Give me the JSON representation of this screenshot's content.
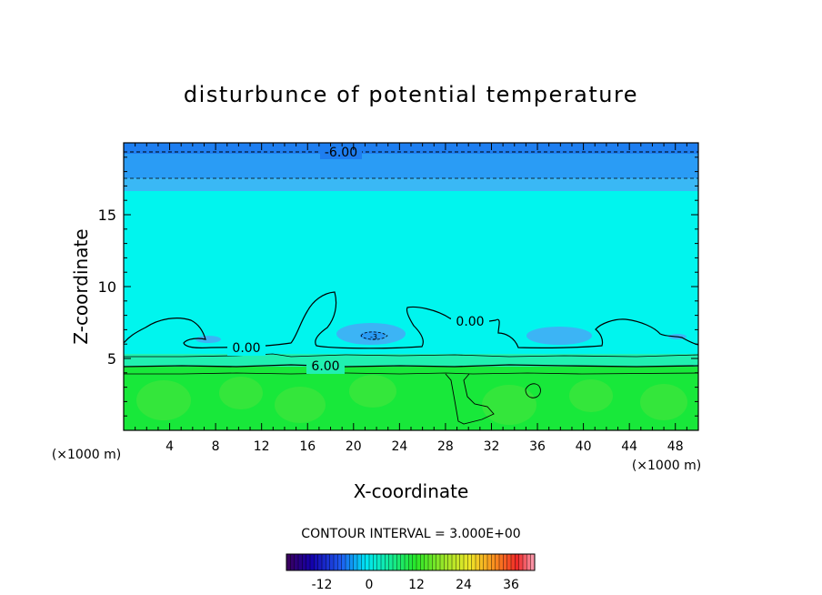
{
  "chart_data": {
    "type": "heatmap",
    "title": "disturbunce of potential temperature",
    "xlabel": "X-coordinate",
    "ylabel": "Z-coordinate",
    "x_unit": "(×1000 m)",
    "xlim": [
      0,
      50
    ],
    "ylim": [
      0,
      20
    ],
    "x_ticks": [
      4,
      8,
      12,
      16,
      20,
      24,
      28,
      32,
      36,
      40,
      44,
      48
    ],
    "y_ticks": [
      5,
      10,
      15
    ],
    "contour_interval_text": "CONTOUR INTERVAL = 3.000E+00",
    "contour_labels": [
      {
        "text": "-6.00",
        "x": 19.3,
        "z": 19.4
      },
      {
        "text": "0.00",
        "x": 30.2,
        "z": 7.7
      },
      {
        "text": "0.00",
        "x": 8.6,
        "z": 5.8
      },
      {
        "text": "6.00",
        "x": 17.3,
        "z": 4.5
      },
      {
        "text": "-3",
        "x": 21.8,
        "z": 6.6
      }
    ],
    "colorbar": {
      "range": [
        -21,
        42
      ],
      "tick_labels": [
        "-12",
        "0",
        "12",
        "24",
        "36"
      ],
      "tick_values": [
        -12,
        0,
        12,
        24,
        36
      ]
    },
    "colors": {
      "cold_top": "#1e7ef0",
      "cold_band": "#2a9cf5",
      "neutral": "#00f5ee",
      "cold_patch": "#3cb4f5",
      "warm_band": "#20f0b0",
      "warm_low": "#18e83a",
      "warm_low_alt": "#3ce63c"
    }
  }
}
